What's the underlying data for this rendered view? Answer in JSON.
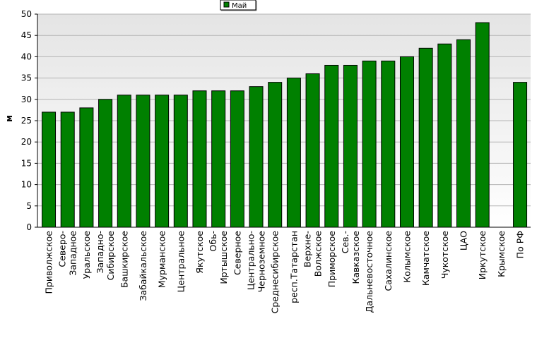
{
  "chart_data": {
    "type": "bar",
    "y_label": "м",
    "categories": [
      [
        "Приволжское"
      ],
      [
        "Северо-",
        "Западное"
      ],
      [
        "Уральское"
      ],
      [
        "Западно-",
        "Сибирское"
      ],
      [
        "Башкирское"
      ],
      [
        "Забайкальское"
      ],
      [
        "Мурманское"
      ],
      [
        "Центральное"
      ],
      [
        "Якутское"
      ],
      [
        "Обь-",
        "Иртышское"
      ],
      [
        "Северное"
      ],
      [
        "Центрально-",
        "Черноземное"
      ],
      [
        "Среднесибирское"
      ],
      [
        "респ.Татарстан"
      ],
      [
        "Верхне-",
        "Волжское"
      ],
      [
        "Приморское"
      ],
      [
        "Сев.-",
        "Кавказское"
      ],
      [
        "Дальневосточное"
      ],
      [
        "Сахалинское"
      ],
      [
        "Колымское"
      ],
      [
        "Камчатское"
      ],
      [
        "Чукотское"
      ],
      [
        "ЦАО"
      ],
      [
        "Иркутское"
      ],
      [
        "Крымское"
      ],
      [
        "По РФ"
      ]
    ],
    "series": [
      {
        "name": "Май",
        "color": "#008000",
        "values": [
          27,
          27,
          28,
          30,
          31,
          31,
          31,
          31,
          32,
          32,
          32,
          33,
          34,
          35,
          36,
          38,
          38,
          39,
          39,
          40,
          42,
          43,
          44,
          48,
          null,
          34
        ]
      }
    ],
    "ylim": [
      0,
      50
    ],
    "yticks": [
      0,
      5,
      10,
      15,
      20,
      25,
      30,
      35,
      40,
      45,
      50
    ],
    "grid": true
  }
}
